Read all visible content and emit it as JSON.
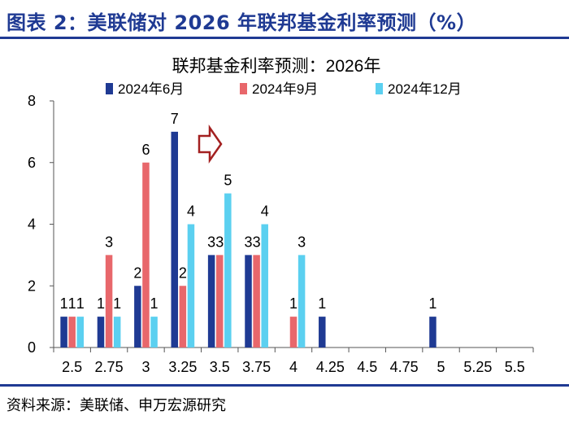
{
  "figure_title": "图表 2：美联储对 2026 年联邦基金利率预测（%）",
  "source": "资料来源：美联储、申万宏源研究",
  "colors": {
    "brand": "#1f3a93",
    "series": [
      "#1f3a93",
      "#e8676b",
      "#5bd0f0"
    ],
    "arrow": "#a32020"
  },
  "chart_data": {
    "type": "bar",
    "title": "联邦基金利率预测：2026年",
    "xlabel": "",
    "ylabel": "",
    "categories": [
      "2.5",
      "2.75",
      "3",
      "3.25",
      "3.5",
      "3.75",
      "4",
      "4.25",
      "4.5",
      "4.75",
      "5",
      "5.25",
      "5.5"
    ],
    "ylim": [
      0,
      8
    ],
    "yticks": [
      "0",
      "2",
      "4",
      "6",
      "8"
    ],
    "legend_position": "top",
    "grid": false,
    "series": [
      {
        "name": "2024年6月",
        "values": [
          1,
          1,
          2,
          7,
          3,
          3,
          0,
          1,
          0,
          0,
          1,
          0,
          0
        ],
        "labels": [
          "1",
          "1",
          "2",
          "7",
          "3",
          "3",
          "",
          "1",
          "",
          "",
          "1",
          "",
          ""
        ]
      },
      {
        "name": "2024年9月",
        "values": [
          1,
          3,
          6,
          2,
          3,
          3,
          1,
          0,
          0,
          0,
          0,
          0,
          0
        ],
        "labels": [
          "1",
          "3",
          "6",
          "2",
          "3",
          "3",
          "1",
          "",
          "",
          "",
          "",
          "",
          ""
        ]
      },
      {
        "name": "2024年12月",
        "values": [
          1,
          1,
          1,
          4,
          5,
          4,
          3,
          0,
          0,
          0,
          0,
          0,
          0
        ],
        "labels": [
          "1",
          "1",
          "1",
          "4",
          "5",
          "4",
          "3",
          "",
          "",
          "",
          "",
          "",
          ""
        ]
      }
    ]
  }
}
